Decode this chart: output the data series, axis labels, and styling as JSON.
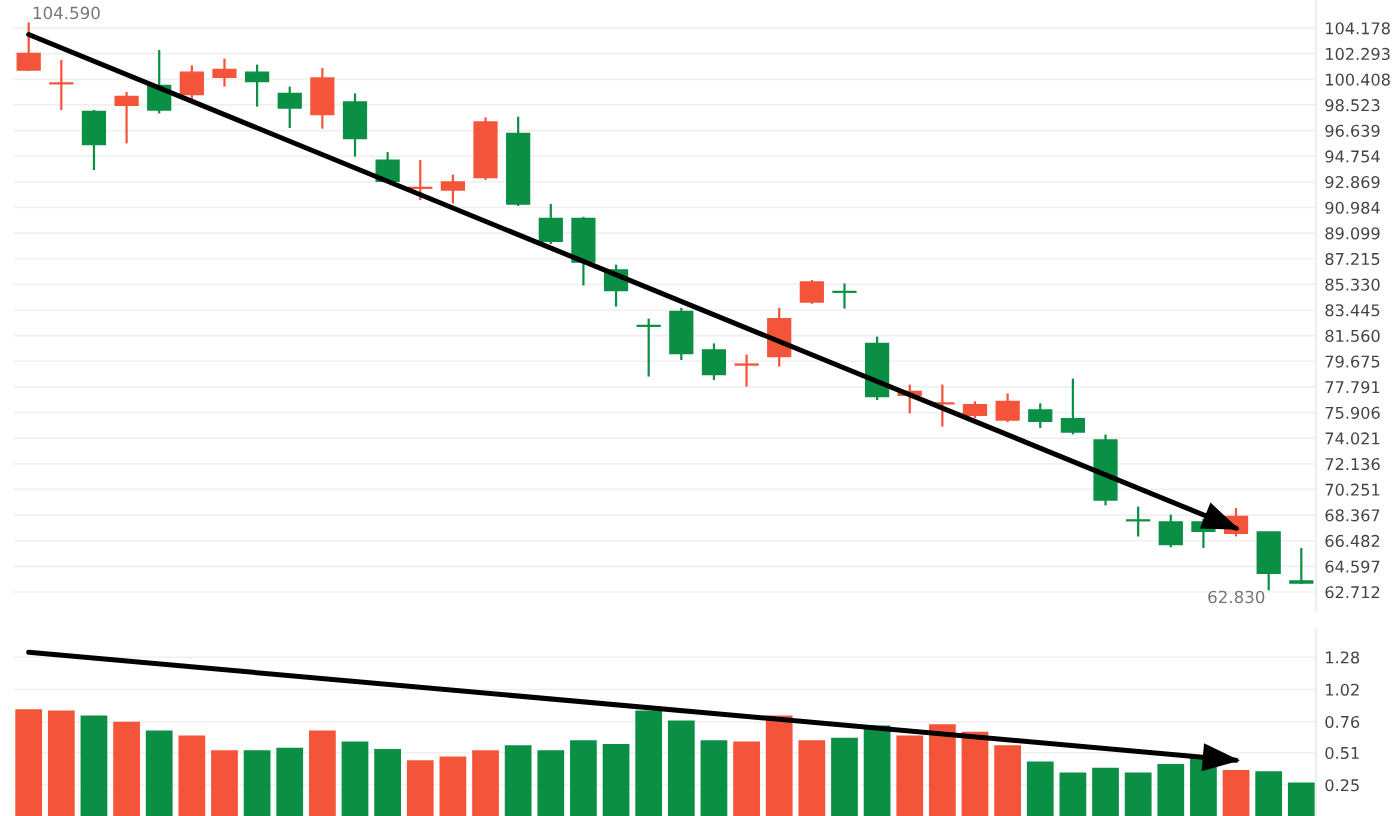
{
  "chart_data": [
    {
      "type": "candlestick",
      "categories": [
        null,
        null,
        null,
        null,
        null,
        null,
        null,
        null,
        null,
        null,
        null,
        null,
        null,
        null,
        null,
        null,
        null,
        null,
        null,
        null,
        null,
        null,
        null,
        null,
        null,
        null,
        null,
        null,
        null,
        null,
        null,
        null,
        null,
        null,
        null,
        null,
        null,
        null,
        null,
        null
      ],
      "ohlc": [
        [
          101.09,
          104.59,
          101.02,
          102.31
        ],
        [
          100.08,
          101.83,
          98.15,
          100.11
        ],
        [
          98.05,
          98.15,
          93.74,
          95.61
        ],
        [
          98.49,
          99.47,
          95.7,
          99.14
        ],
        [
          99.96,
          102.56,
          97.9,
          98.15
        ],
        [
          99.28,
          101.43,
          98.89,
          100.94
        ],
        [
          100.55,
          101.93,
          99.87,
          101.13
        ],
        [
          100.94,
          101.49,
          98.4,
          100.25
        ],
        [
          99.37,
          99.87,
          96.83,
          98.3
        ],
        [
          97.81,
          101.24,
          96.78,
          100.5
        ],
        [
          98.74,
          99.37,
          94.72,
          96.05
        ],
        [
          94.47,
          95.06,
          92.8,
          92.9
        ],
        [
          92.4,
          94.47,
          91.53,
          92.42
        ],
        [
          92.27,
          93.4,
          91.28,
          92.86
        ],
        [
          93.19,
          97.61,
          93.0,
          97.27
        ],
        [
          96.43,
          97.66,
          91.1,
          91.24
        ],
        [
          90.17,
          91.24,
          88.3,
          88.49
        ],
        [
          90.17,
          90.3,
          85.25,
          86.97
        ],
        [
          86.39,
          86.78,
          83.7,
          84.87
        ],
        [
          82.31,
          82.81,
          78.55,
          82.25
        ],
        [
          83.34,
          83.6,
          79.77,
          80.25
        ],
        [
          80.51,
          80.99,
          78.3,
          78.7
        ],
        [
          79.4,
          80.17,
          77.81,
          79.47
        ],
        [
          80.02,
          83.59,
          79.28,
          82.81
        ],
        [
          84.03,
          85.65,
          83.9,
          85.5
        ],
        [
          84.81,
          85.4,
          83.55,
          84.75
        ],
        [
          80.99,
          81.49,
          76.83,
          77.08
        ],
        [
          77.17,
          77.96,
          75.85,
          77.46
        ],
        [
          76.55,
          77.96,
          74.87,
          76.58
        ],
        [
          75.7,
          76.73,
          75.5,
          76.49
        ],
        [
          75.36,
          77.31,
          75.2,
          76.73
        ],
        [
          76.09,
          76.58,
          74.77,
          75.26
        ],
        [
          75.46,
          78.4,
          74.3,
          74.48
        ],
        [
          73.89,
          74.29,
          69.08,
          69.48
        ],
        [
          68.01,
          68.99,
          66.79,
          67.95
        ],
        [
          67.86,
          68.4,
          66.0,
          66.2
        ],
        [
          67.86,
          68.1,
          65.95,
          67.17
        ],
        [
          67.02,
          68.89,
          66.8,
          68.26
        ],
        [
          67.12,
          67.12,
          62.83,
          64.08
        ],
        [
          63.52,
          65.95,
          63.3,
          63.37
        ]
      ],
      "colors": [
        "#f4553a",
        "#f4553a",
        "#0b8f45",
        "#f4553a",
        "#0b8f45",
        "#f4553a",
        "#f4553a",
        "#0b8f45",
        "#0b8f45",
        "#f4553a",
        "#0b8f45",
        "#0b8f45",
        "#f4553a",
        "#f4553a",
        "#f4553a",
        "#0b8f45",
        "#0b8f45",
        "#0b8f45",
        "#0b8f45",
        "#0b8f45",
        "#0b8f45",
        "#0b8f45",
        "#f4553a",
        "#f4553a",
        "#f4553a",
        "#0b8f45",
        "#0b8f45",
        "#f4553a",
        "#f4553a",
        "#f4553a",
        "#f4553a",
        "#0b8f45",
        "#0b8f45",
        "#0b8f45",
        "#0b8f45",
        "#0b8f45",
        "#0b8f45",
        "#f4553a",
        "#0b8f45",
        "#0b8f45"
      ],
      "series": [
        {
          "type": "line",
          "color": "#000000",
          "values": [
            103.7,
            null,
            null,
            null,
            null,
            null,
            null,
            null,
            null,
            null,
            null,
            null,
            null,
            null,
            null,
            null,
            null,
            null,
            null,
            null,
            null,
            null,
            null,
            null,
            null,
            null,
            null,
            null,
            null,
            null,
            null,
            null,
            null,
            null,
            null,
            null,
            null,
            67.4,
            null,
            null
          ]
        }
      ],
      "ylim": [
        61.39,
        106.24
      ],
      "yticks": [
        104.178,
        102.293,
        100.408,
        98.523,
        96.639,
        94.754,
        92.869,
        90.984,
        89.099,
        87.215,
        {
          "value": 85.33,
          "label": "85.330"
        },
        83.445,
        {
          "value": 81.56,
          "label": "81.560"
        },
        79.675,
        77.791,
        75.906,
        74.021,
        72.136,
        70.251,
        68.367,
        66.482,
        64.597,
        62.712
      ],
      "annotations": [
        "104.590",
        "62.830"
      ],
      "grid": "y",
      "tick_labels": "y"
    },
    {
      "type": "bar",
      "categories": [
        null,
        null,
        null,
        null,
        null,
        null,
        null,
        null,
        null,
        null,
        null,
        null,
        null,
        null,
        null,
        null,
        null,
        null,
        null,
        null,
        null,
        null,
        null,
        null,
        null,
        null,
        null,
        null,
        null,
        null,
        null,
        null,
        null,
        null,
        null,
        null,
        null,
        null,
        null,
        null
      ],
      "values": [
        0.86,
        0.85,
        0.81,
        0.76,
        0.69,
        0.65,
        0.53,
        0.53,
        0.55,
        0.69,
        0.6,
        0.54,
        0.45,
        0.48,
        0.53,
        0.57,
        0.53,
        0.61,
        0.58,
        0.85,
        0.77,
        0.61,
        0.6,
        0.81,
        0.61,
        0.63,
        0.73,
        0.65,
        0.74,
        0.68,
        0.57,
        0.44,
        0.35,
        0.39,
        0.35,
        0.42,
        0.48,
        0.37,
        0.36,
        0.27
      ],
      "colors": [
        "#f4553a",
        "#f4553a",
        "#0b8f45",
        "#f4553a",
        "#0b8f45",
        "#f4553a",
        "#f4553a",
        "#0b8f45",
        "#0b8f45",
        "#f4553a",
        "#0b8f45",
        "#0b8f45",
        "#f4553a",
        "#f4553a",
        "#f4553a",
        "#0b8f45",
        "#0b8f45",
        "#0b8f45",
        "#0b8f45",
        "#0b8f45",
        "#0b8f45",
        "#0b8f45",
        "#f4553a",
        "#f4553a",
        "#f4553a",
        "#0b8f45",
        "#0b8f45",
        "#f4553a",
        "#f4553a",
        "#f4553a",
        "#f4553a",
        "#0b8f45",
        "#0b8f45",
        "#0b8f45",
        "#0b8f45",
        "#0b8f45",
        "#0b8f45",
        "#f4553a",
        "#0b8f45",
        "#0b8f45"
      ],
      "series": [
        {
          "type": "line",
          "color": "#000000",
          "values": [
            1.32,
            null,
            null,
            null,
            null,
            null,
            null,
            null,
            null,
            null,
            null,
            null,
            null,
            null,
            null,
            null,
            null,
            null,
            null,
            null,
            null,
            null,
            null,
            null,
            null,
            null,
            null,
            null,
            null,
            null,
            null,
            null,
            null,
            null,
            null,
            null,
            null,
            0.45,
            null,
            null
          ]
        }
      ],
      "ylim": [
        0,
        1.5
      ],
      "yticks": [
        1.28,
        1.02,
        0.76,
        0.51,
        0.25
      ],
      "grid": "y",
      "tick_labels": "y"
    }
  ]
}
